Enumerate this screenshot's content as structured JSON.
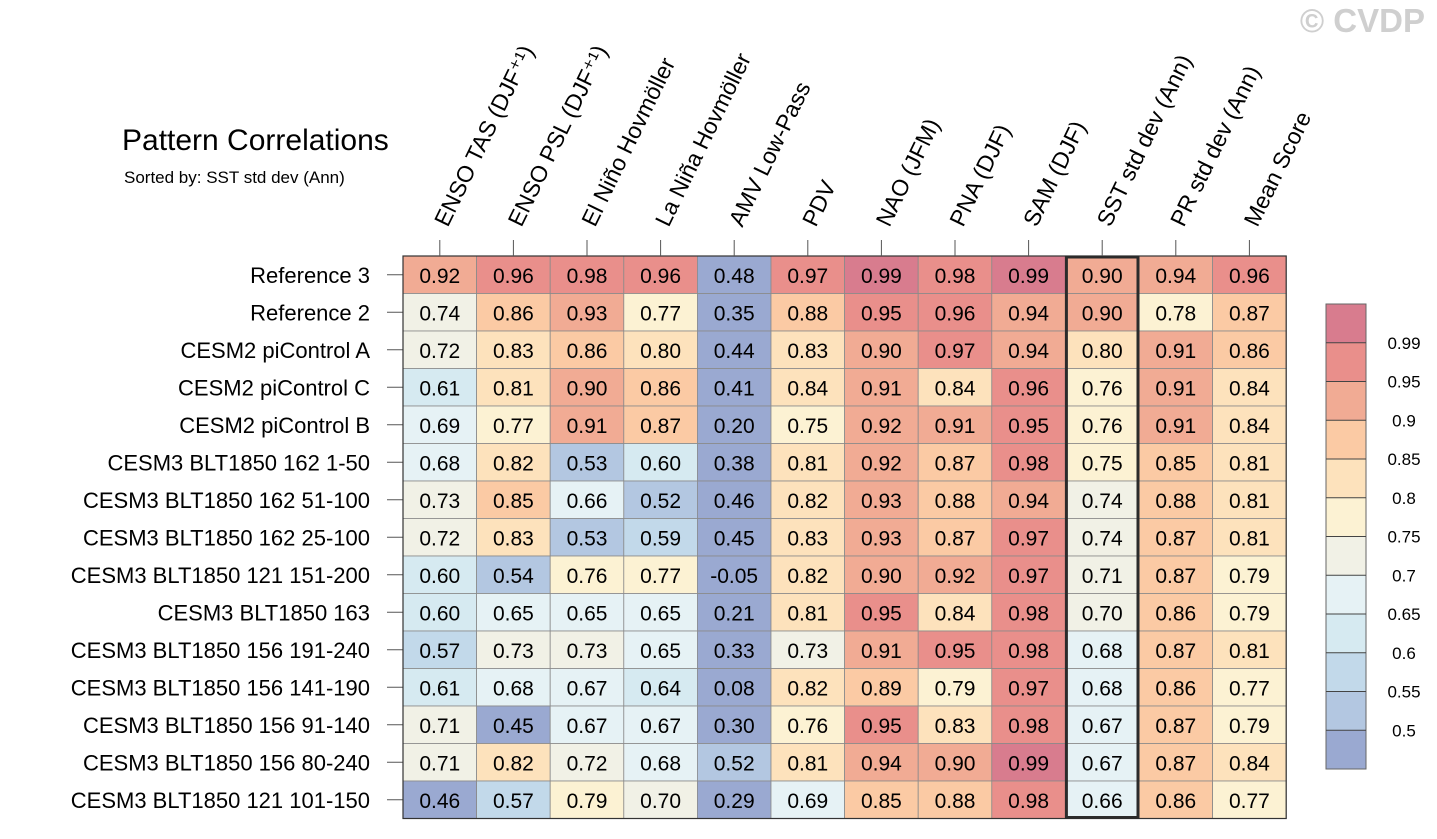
{
  "watermark": "© CVDP",
  "chart_data": {
    "type": "heatmap",
    "title": "Pattern Correlations",
    "subtitle": "Sorted by: SST std dev (Ann)",
    "columns": [
      "ENSO TAS (DJF⁺¹)",
      "ENSO PSL (DJF⁺¹)",
      "El Niño Hovmöller",
      "La Niña Hovmöller",
      "AMV Low-Pass",
      "PDV",
      "NAO (JFM)",
      "PNA (DJF)",
      "SAM (DJF)",
      "SST std dev (Ann)",
      "PR std dev (Ann)",
      "Mean Score"
    ],
    "highlighted_column": "SST std dev (Ann)",
    "rows": [
      {
        "name": "Reference 3",
        "values": [
          "0.92",
          "0.96",
          "0.98",
          "0.96",
          "0.48",
          "0.97",
          "0.99",
          "0.98",
          "0.99",
          "0.90",
          "0.94",
          "0.96"
        ]
      },
      {
        "name": "Reference 2",
        "values": [
          "0.74",
          "0.86",
          "0.93",
          "0.77",
          "0.35",
          "0.88",
          "0.95",
          "0.96",
          "0.94",
          "0.90",
          "0.78",
          "0.87"
        ]
      },
      {
        "name": "CESM2 piControl A",
        "values": [
          "0.72",
          "0.83",
          "0.86",
          "0.80",
          "0.44",
          "0.83",
          "0.90",
          "0.97",
          "0.94",
          "0.80",
          "0.91",
          "0.86"
        ]
      },
      {
        "name": "CESM2 piControl C",
        "values": [
          "0.61",
          "0.81",
          "0.90",
          "0.86",
          "0.41",
          "0.84",
          "0.91",
          "0.84",
          "0.96",
          "0.76",
          "0.91",
          "0.84"
        ]
      },
      {
        "name": "CESM2 piControl B",
        "values": [
          "0.69",
          "0.77",
          "0.91",
          "0.87",
          "0.20",
          "0.75",
          "0.92",
          "0.91",
          "0.95",
          "0.76",
          "0.91",
          "0.84"
        ]
      },
      {
        "name": "CESM3 BLT1850 162 1-50",
        "values": [
          "0.68",
          "0.82",
          "0.53",
          "0.60",
          "0.38",
          "0.81",
          "0.92",
          "0.87",
          "0.98",
          "0.75",
          "0.85",
          "0.81"
        ]
      },
      {
        "name": "CESM3 BLT1850 162 51-100",
        "values": [
          "0.73",
          "0.85",
          "0.66",
          "0.52",
          "0.46",
          "0.82",
          "0.93",
          "0.88",
          "0.94",
          "0.74",
          "0.88",
          "0.81"
        ]
      },
      {
        "name": "CESM3 BLT1850 162 25-100",
        "values": [
          "0.72",
          "0.83",
          "0.53",
          "0.59",
          "0.45",
          "0.83",
          "0.93",
          "0.87",
          "0.97",
          "0.74",
          "0.87",
          "0.81"
        ]
      },
      {
        "name": "CESM3 BLT1850 121 151-200",
        "values": [
          "0.60",
          "0.54",
          "0.76",
          "0.77",
          "-0.05",
          "0.82",
          "0.90",
          "0.92",
          "0.97",
          "0.71",
          "0.87",
          "0.79"
        ]
      },
      {
        "name": "CESM3 BLT1850 163",
        "values": [
          "0.60",
          "0.65",
          "0.65",
          "0.65",
          "0.21",
          "0.81",
          "0.95",
          "0.84",
          "0.98",
          "0.70",
          "0.86",
          "0.79"
        ]
      },
      {
        "name": "CESM3 BLT1850 156 191-240",
        "values": [
          "0.57",
          "0.73",
          "0.73",
          "0.65",
          "0.33",
          "0.73",
          "0.91",
          "0.95",
          "0.98",
          "0.68",
          "0.87",
          "0.81"
        ]
      },
      {
        "name": "CESM3 BLT1850 156 141-190",
        "values": [
          "0.61",
          "0.68",
          "0.67",
          "0.64",
          "0.08",
          "0.82",
          "0.89",
          "0.79",
          "0.97",
          "0.68",
          "0.86",
          "0.77"
        ]
      },
      {
        "name": "CESM3 BLT1850 156 91-140",
        "values": [
          "0.71",
          "0.45",
          "0.67",
          "0.67",
          "0.30",
          "0.76",
          "0.95",
          "0.83",
          "0.98",
          "0.67",
          "0.87",
          "0.79"
        ]
      },
      {
        "name": "CESM3 BLT1850 156 80-240",
        "values": [
          "0.71",
          "0.82",
          "0.72",
          "0.68",
          "0.52",
          "0.81",
          "0.94",
          "0.90",
          "0.99",
          "0.67",
          "0.87",
          "0.84"
        ]
      },
      {
        "name": "CESM3 BLT1850 121 101-150",
        "values": [
          "0.46",
          "0.57",
          "0.79",
          "0.70",
          "0.29",
          "0.69",
          "0.85",
          "0.88",
          "0.98",
          "0.66",
          "0.86",
          "0.77"
        ]
      }
    ],
    "colorbar": {
      "levels": [
        "0.5",
        "0.55",
        "0.6",
        "0.65",
        "0.7",
        "0.75",
        "0.8",
        "0.85",
        "0.9",
        "0.95",
        "0.99"
      ],
      "colors": [
        "#9aa9d1",
        "#b3c7e1",
        "#c2d9ea",
        "#d6eaf1",
        "#e6f2f5",
        "#f1f1e6",
        "#fcf2d3",
        "#fde2bc",
        "#fbcaa4",
        "#f1ab94",
        "#e98f8b",
        "#d87c8e"
      ]
    }
  }
}
